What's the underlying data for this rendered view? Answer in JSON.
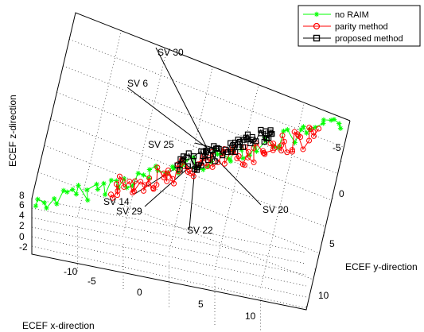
{
  "chart_data": {
    "type": "line",
    "projection": "3d",
    "xlabel": "ECEF x-direction",
    "ylabel": "ECEF y-direction",
    "zlabel": "ECEF z-direction",
    "x_ticks": [
      "-10",
      "-5",
      "0",
      "5",
      "10"
    ],
    "y_ticks": [
      "-5",
      "0",
      "5",
      "10"
    ],
    "z_ticks": [
      "-2",
      "0",
      "2",
      "4",
      "6",
      "8"
    ],
    "grid": true,
    "legend_position": "top-right",
    "series": [
      {
        "name": "no RAIM",
        "color": "#00ff00",
        "marker": "*"
      },
      {
        "name": "parity method",
        "color": "#ff0000",
        "marker": "o"
      },
      {
        "name": "proposed method",
        "color": "#000000",
        "marker": "s"
      }
    ],
    "annotations": [
      "SV 30",
      "SV 6",
      "SV 25",
      "SV 14",
      "SV 29",
      "SV 22",
      "SV 20"
    ]
  }
}
